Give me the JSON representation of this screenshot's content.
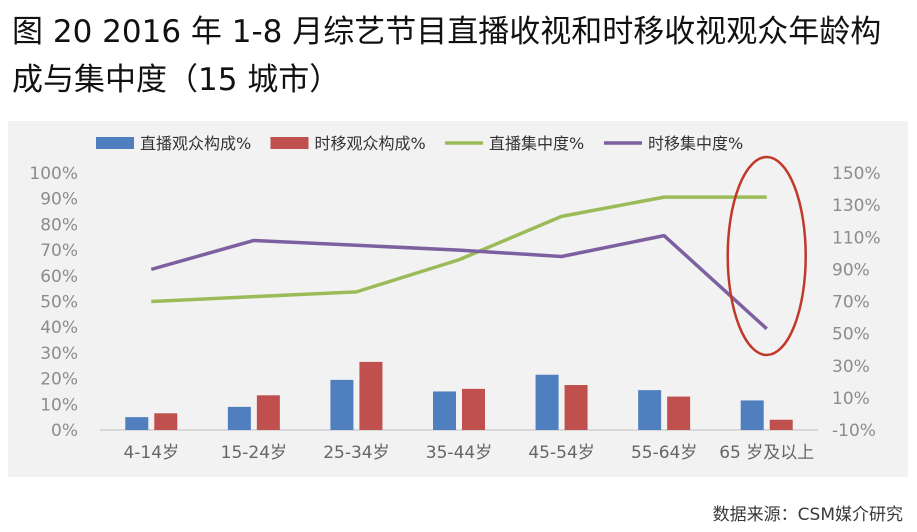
{
  "title": "图 20 2016 年 1-8 月综艺节目直播收视和时移收视观众年龄构成与集中度（15 城市）",
  "source": "数据来源：CSM媒介研究",
  "chart_data": {
    "type": "bar",
    "categories": [
      "4-14岁",
      "15-24岁",
      "25-34岁",
      "35-44岁",
      "45-54岁",
      "55-64岁",
      "65 岁及以上"
    ],
    "series": [
      {
        "name": "直播观众构成%",
        "type": "bar",
        "axis": "left",
        "color": "#4f7fbe",
        "values": [
          5,
          9,
          19.5,
          15,
          21.5,
          15.5,
          11.5
        ]
      },
      {
        "name": "时移观众构成%",
        "type": "bar",
        "axis": "left",
        "color": "#c0504d",
        "values": [
          6.5,
          13.5,
          26.5,
          16,
          17.5,
          13,
          4
        ]
      },
      {
        "name": "直播集中度%",
        "type": "line",
        "axis": "right",
        "color": "#9bbb59",
        "values": [
          70,
          73,
          76,
          96,
          123,
          135,
          135
        ]
      },
      {
        "name": "时移集中度%",
        "type": "line",
        "axis": "right",
        "color": "#7d60a0",
        "values": [
          90,
          108,
          105,
          102,
          98,
          111,
          53
        ]
      }
    ],
    "y_left": {
      "min": 0,
      "max": 100,
      "step": 10,
      "tick_labels": [
        "0%",
        "10%",
        "20%",
        "30%",
        "40%",
        "50%",
        "60%",
        "70%",
        "80%",
        "90%",
        "100%"
      ]
    },
    "y_right": {
      "min": -10,
      "max": 150,
      "step": 20,
      "tick_labels": [
        "-10%",
        "10%",
        "30%",
        "50%",
        "70%",
        "90%",
        "110%",
        "130%",
        "150%"
      ]
    },
    "legend_position": "top",
    "grid": false,
    "annotation": {
      "shape": "ellipse",
      "color": "#c0392b",
      "target_category": "65 岁及以上"
    }
  }
}
